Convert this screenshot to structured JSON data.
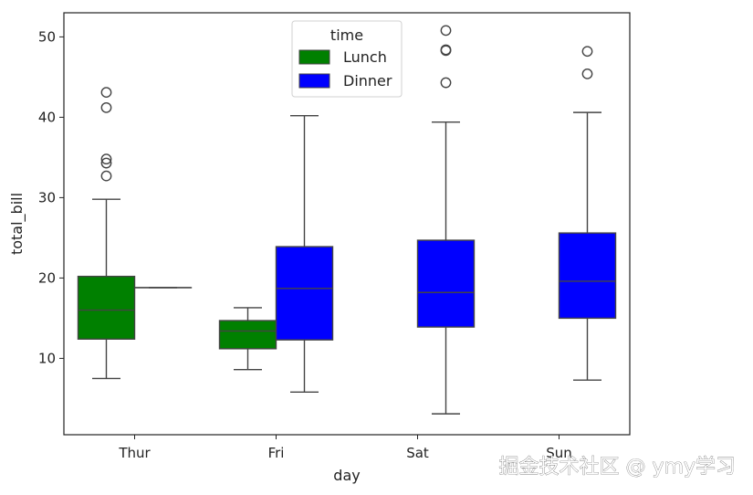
{
  "chart_data": {
    "type": "box",
    "xlabel": "day",
    "ylabel": "total_bill",
    "categories": [
      "Thur",
      "Fri",
      "Sat",
      "Sun"
    ],
    "ylim": [
      0.5,
      53
    ],
    "yticks": [
      10,
      20,
      30,
      40,
      50
    ],
    "grid": false,
    "legend": {
      "title": "time",
      "placement": "top-center"
    },
    "series": [
      {
        "name": "Lunch",
        "color": "#008000",
        "boxes": [
          {
            "category": "Thur",
            "whisker_low": 7.5,
            "q1": 12.4,
            "median": 16.0,
            "q3": 20.2,
            "whisker_high": 29.8,
            "outliers": [
              32.7,
              34.3,
              34.8,
              41.2,
              43.1
            ]
          },
          {
            "category": "Fri",
            "whisker_low": 8.6,
            "q1": 11.2,
            "median": 13.4,
            "q3": 14.7,
            "whisker_high": 16.3,
            "outliers": []
          }
        ]
      },
      {
        "name": "Dinner",
        "color": "#0000ff",
        "boxes": [
          {
            "category": "Thur",
            "whisker_low": 18.8,
            "q1": 18.8,
            "median": 18.8,
            "q3": 18.8,
            "whisker_high": 18.8,
            "outliers": []
          },
          {
            "category": "Fri",
            "whisker_low": 5.8,
            "q1": 12.3,
            "median": 18.7,
            "q3": 23.9,
            "whisker_high": 40.2,
            "outliers": []
          },
          {
            "category": "Sat",
            "whisker_low": 3.1,
            "q1": 13.9,
            "median": 18.2,
            "q3": 24.7,
            "whisker_high": 39.4,
            "outliers": [
              44.3,
              48.3,
              48.4,
              50.8
            ]
          },
          {
            "category": "Sun",
            "whisker_low": 7.3,
            "q1": 15.0,
            "median": 19.6,
            "q3": 25.6,
            "whisker_high": 40.6,
            "outliers": [
              45.4,
              48.2
            ]
          }
        ]
      }
    ]
  },
  "watermark": "掘金技术社区 @ ymy学习"
}
